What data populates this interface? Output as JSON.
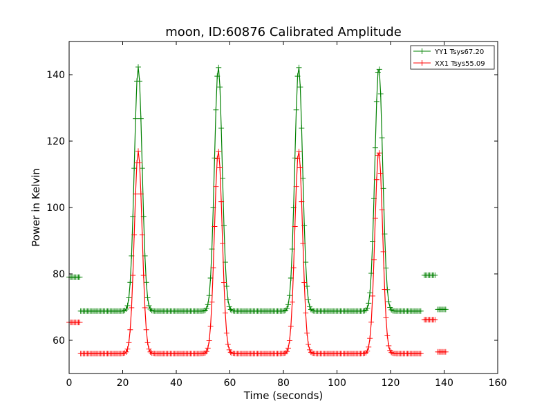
{
  "chart_data": {
    "type": "line",
    "title": "moon, ID:60876 Calibrated Amplitude",
    "xlabel": "Time (seconds)",
    "ylabel": "Power in Kelvin",
    "xlim": [
      0,
      160
    ],
    "ylim": [
      50,
      150
    ],
    "xticks": [
      0,
      20,
      40,
      60,
      80,
      100,
      120,
      140,
      160
    ],
    "yticks": [
      60,
      80,
      100,
      120,
      140
    ],
    "grid": false,
    "legend_position": "top-right",
    "marker": "+",
    "peaks": [
      25.8,
      55.7,
      85.7,
      115.6
    ],
    "series": [
      {
        "name": "YY1 Tsys67.20",
        "color": "#008000",
        "baseline": 68.8,
        "peak": 142.3,
        "segments": [
          {
            "start": 0.0,
            "end": 4.0,
            "level": 79.0
          },
          {
            "start": 4.3,
            "end": 131.7,
            "level": "baseline"
          },
          {
            "start": 132.6,
            "end": 136.9,
            "level": 79.6
          },
          {
            "start": 137.6,
            "end": 140.8,
            "level": 69.3
          }
        ]
      },
      {
        "name": "XX1 Tsys55.09",
        "color": "#ff0000",
        "baseline": 56.0,
        "peak": 117.0,
        "segments": [
          {
            "start": 0.0,
            "end": 4.0,
            "level": 65.4
          },
          {
            "start": 4.3,
            "end": 131.7,
            "level": "baseline"
          },
          {
            "start": 132.6,
            "end": 136.9,
            "level": 66.2
          },
          {
            "start": 137.6,
            "end": 140.8,
            "level": 56.5
          }
        ]
      }
    ]
  }
}
